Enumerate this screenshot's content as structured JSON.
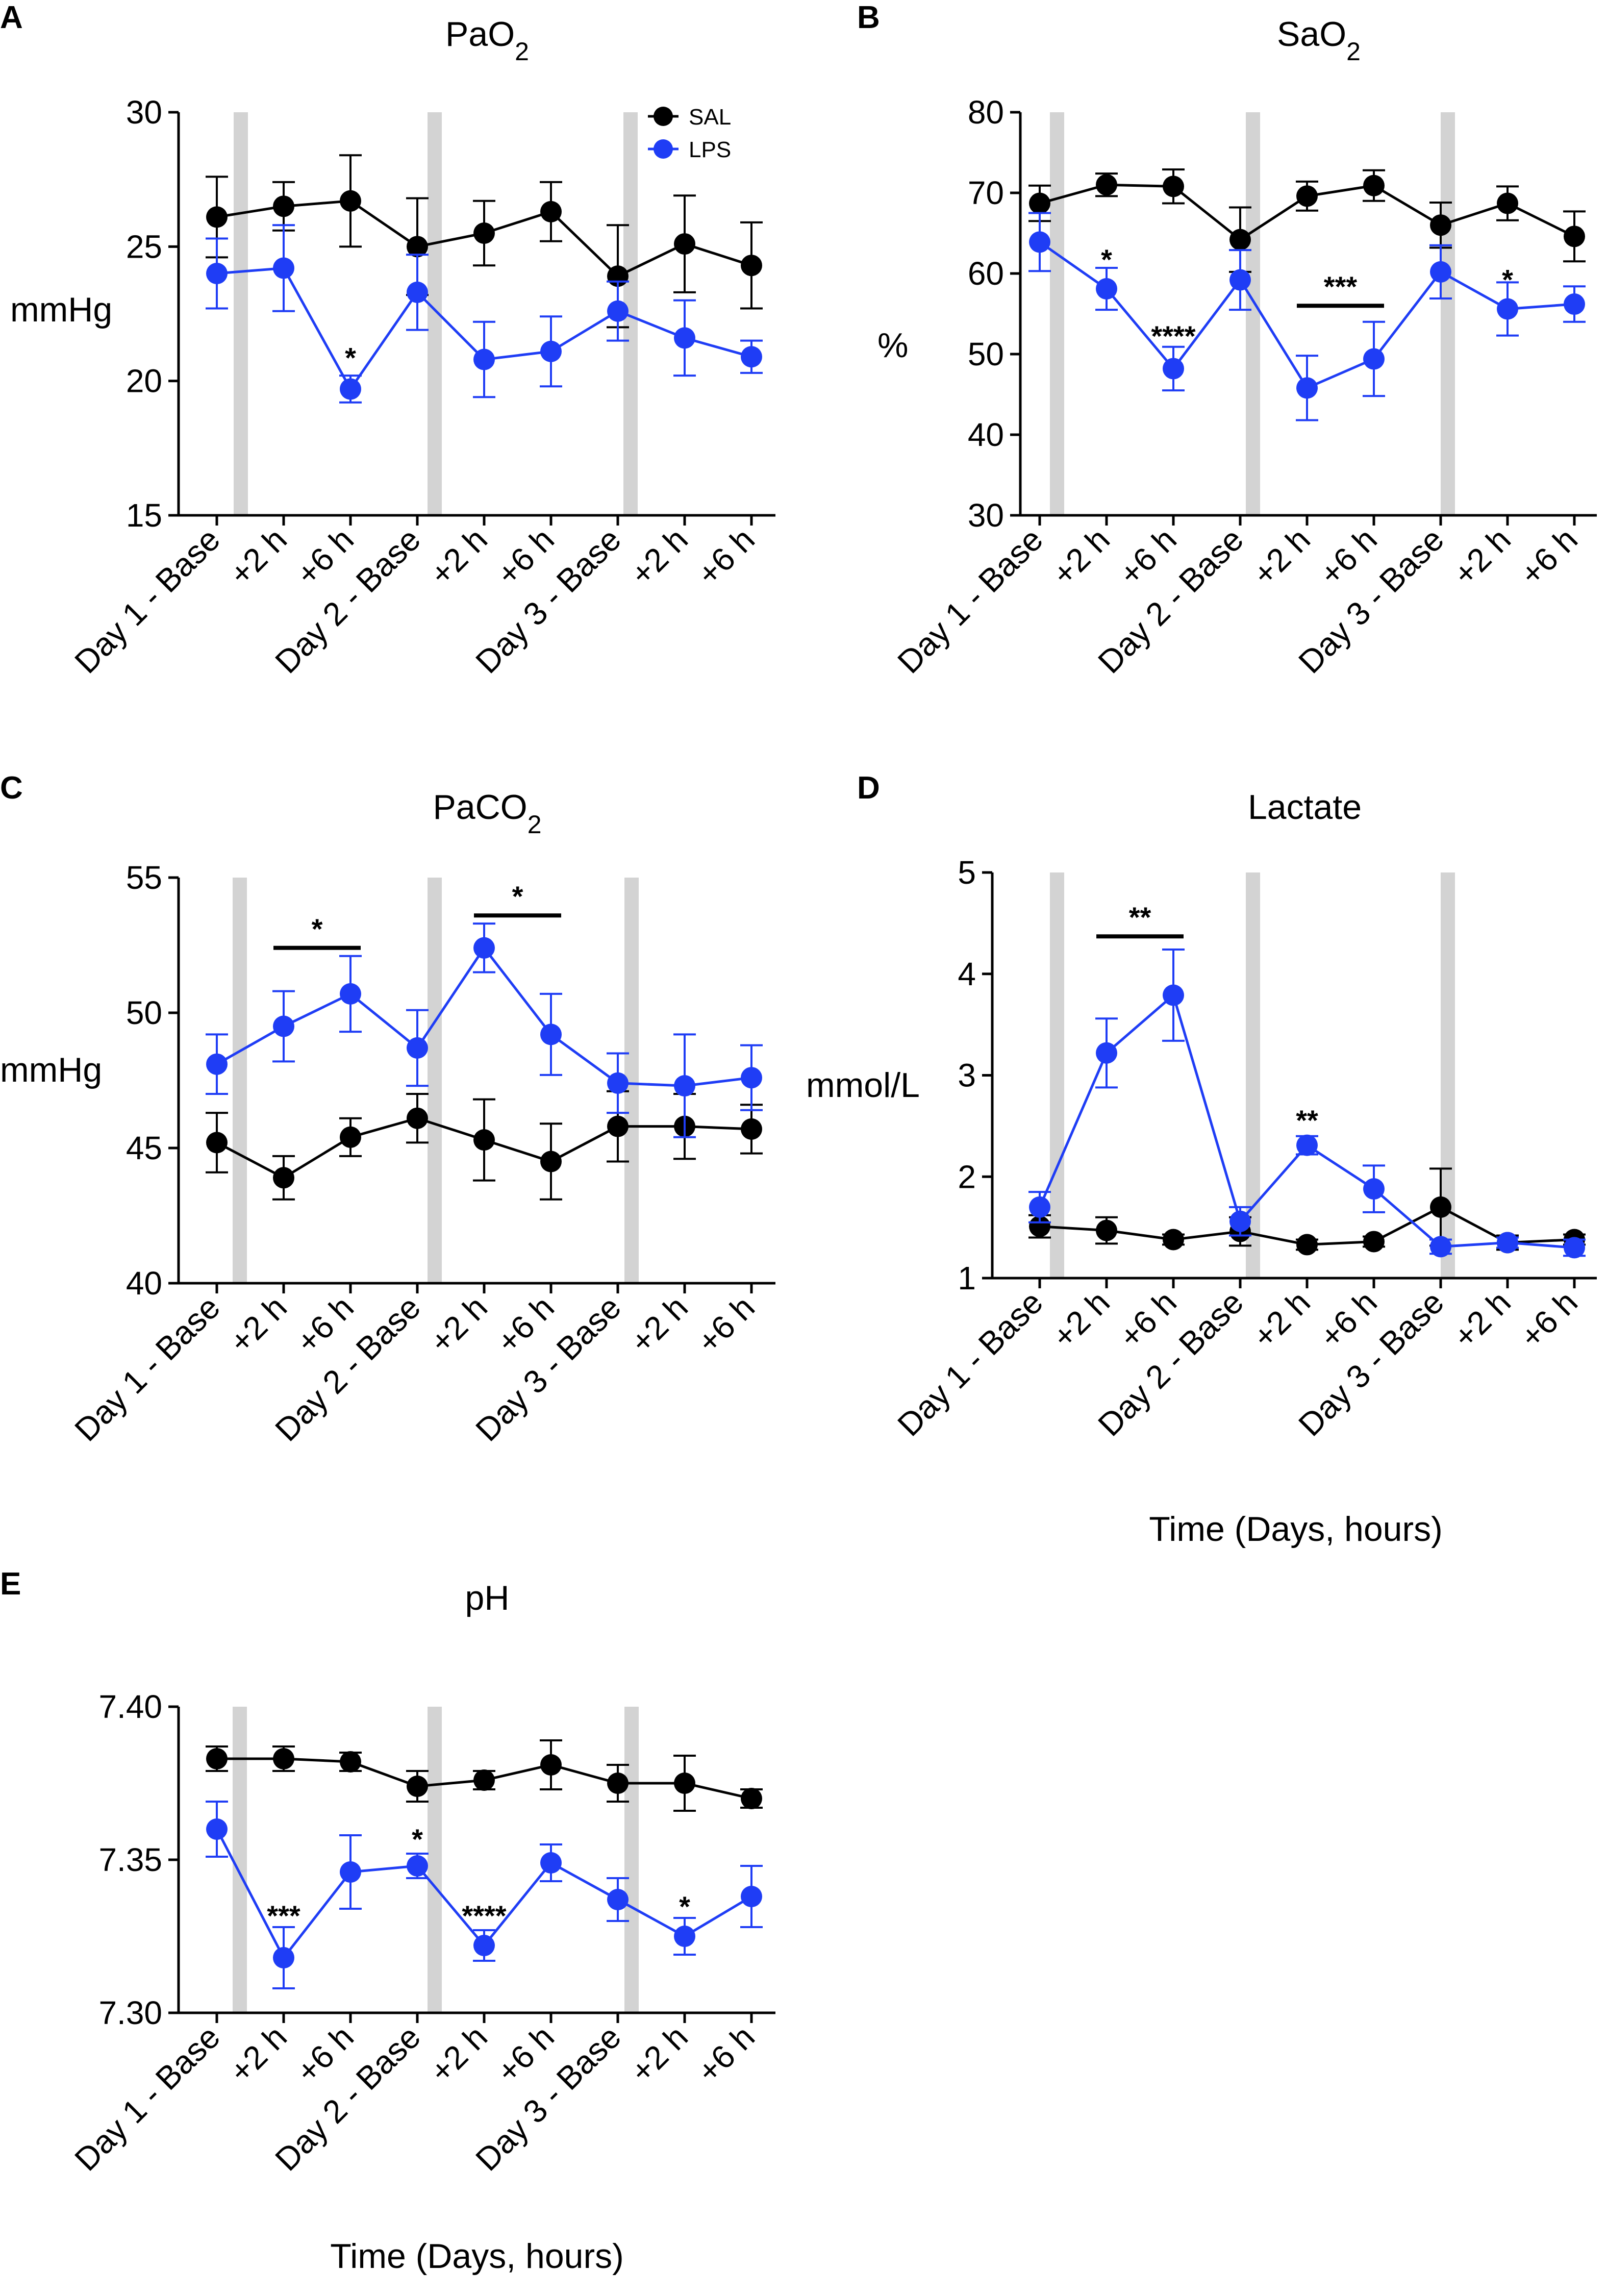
{
  "figure": {
    "colors": {
      "SAL": "#000000",
      "LPS": "#1f3df5",
      "band": "#d3d3d3"
    }
  },
  "chart_data": [
    {
      "panel": "A",
      "type": "line",
      "title": "PaO",
      "title_sub": "2",
      "ylabel": "mmHg",
      "xlabel": "",
      "ylim": [
        15,
        30
      ],
      "yticks": [
        "15",
        "20",
        "25",
        "30"
      ],
      "categories": [
        "Day 1 - Base",
        "+2 h",
        "+6 h",
        "Day 2 - Base",
        "+2 h",
        "+6 h",
        "Day 3 - Base",
        "+2 h",
        "+6 h"
      ],
      "legend": [
        "SAL",
        "LPS"
      ],
      "series": [
        {
          "name": "SAL",
          "values": [
            26.1,
            26.5,
            26.7,
            25.0,
            25.5,
            26.3,
            23.9,
            25.1,
            24.3
          ],
          "errors": [
            1.5,
            0.9,
            1.7,
            1.8,
            1.2,
            1.1,
            1.9,
            1.8,
            1.6
          ]
        },
        {
          "name": "LPS",
          "values": [
            24.0,
            24.2,
            19.7,
            23.3,
            20.8,
            21.1,
            22.6,
            21.6,
            20.9
          ],
          "errors": [
            1.3,
            1.6,
            0.5,
            1.4,
            1.4,
            1.3,
            1.1,
            1.4,
            0.6
          ]
        }
      ],
      "annotations": [
        {
          "text": "*",
          "x": 2,
          "y": 20.5
        }
      ],
      "bars": []
    },
    {
      "panel": "B",
      "type": "line",
      "title": "SaO",
      "title_sub": "2",
      "ylabel": "%",
      "xlabel": "",
      "ylim": [
        30,
        80
      ],
      "yticks": [
        "30",
        "40",
        "50",
        "60",
        "70",
        "80"
      ],
      "categories": [
        "Day 1 - Base",
        "+2 h",
        "+6 h",
        "Day 2 - Base",
        "+2 h",
        "+6 h",
        "Day 3 - Base",
        "+2 h",
        "+6 h"
      ],
      "legend": [],
      "series": [
        {
          "name": "SAL",
          "values": [
            68.7,
            71.0,
            70.8,
            64.2,
            69.6,
            70.9,
            66.0,
            68.7,
            64.6
          ],
          "errors": [
            2.2,
            1.4,
            2.1,
            4.0,
            1.8,
            1.9,
            2.8,
            2.1,
            3.1
          ]
        },
        {
          "name": "LPS",
          "values": [
            63.9,
            58.1,
            48.2,
            59.2,
            45.8,
            49.4,
            60.2,
            55.6,
            56.2
          ],
          "errors": [
            3.6,
            2.6,
            2.7,
            3.7,
            4.0,
            4.6,
            3.3,
            3.3,
            2.2
          ]
        }
      ],
      "annotations": [
        {
          "text": "*",
          "x": 1,
          "y": 60.5
        },
        {
          "text": "****",
          "x": 2,
          "y": 51
        },
        {
          "text": "*",
          "x": 7,
          "y": 58
        }
      ],
      "bars": [
        {
          "text": "***",
          "x1": 4,
          "x2": 5,
          "y": 56
        }
      ]
    },
    {
      "panel": "C",
      "type": "line",
      "title": "PaCO",
      "title_sub": "2",
      "ylabel": "mmHg",
      "xlabel": "",
      "ylim": [
        40,
        55
      ],
      "yticks": [
        "40",
        "45",
        "50",
        "55"
      ],
      "categories": [
        "Day 1 - Base",
        "+2 h",
        "+6 h",
        "Day 2 - Base",
        "+2 h",
        "+6 h",
        "Day 3 - Base",
        "+2 h",
        "+6 h"
      ],
      "legend": [],
      "series": [
        {
          "name": "SAL",
          "values": [
            45.2,
            43.9,
            45.4,
            46.1,
            45.3,
            44.5,
            45.8,
            45.8,
            45.7
          ],
          "errors": [
            1.1,
            0.8,
            0.7,
            0.9,
            1.5,
            1.4,
            1.3,
            1.2,
            0.9
          ]
        },
        {
          "name": "LPS",
          "values": [
            48.1,
            49.5,
            50.7,
            48.7,
            52.4,
            49.2,
            47.4,
            47.3,
            47.6
          ],
          "errors": [
            1.1,
            1.3,
            1.4,
            1.4,
            0.9,
            1.5,
            1.1,
            1.9,
            1.2
          ]
        }
      ],
      "annotations": [],
      "bars": [
        {
          "text": "*",
          "x1": 1,
          "x2": 2,
          "y": 52.4
        },
        {
          "text": "*",
          "x1": 4,
          "x2": 5,
          "y": 53.6
        }
      ]
    },
    {
      "panel": "D",
      "type": "line",
      "title": "Lactate",
      "title_sub": "",
      "ylabel": "mmol/L",
      "xlabel": "Time (Days, hours)",
      "ylim": [
        1,
        5
      ],
      "yticks": [
        "1",
        "2",
        "3",
        "4",
        "5"
      ],
      "categories": [
        "Day 1 - Base",
        "+2 h",
        "+6 h",
        "Day 2 - Base",
        "+2 h",
        "+6 h",
        "Day 3 - Base",
        "+2 h",
        "+6 h"
      ],
      "legend": [],
      "series": [
        {
          "name": "SAL",
          "values": [
            1.51,
            1.47,
            1.38,
            1.46,
            1.33,
            1.36,
            1.7,
            1.35,
            1.38
          ],
          "errors": [
            0.11,
            0.13,
            0.05,
            0.14,
            0.05,
            0.05,
            0.38,
            0.07,
            0.05
          ]
        },
        {
          "name": "LPS",
          "values": [
            1.7,
            3.22,
            3.79,
            1.56,
            2.31,
            1.88,
            1.31,
            1.35,
            1.3
          ],
          "errors": [
            0.15,
            0.34,
            0.45,
            0.14,
            0.09,
            0.23,
            0.07,
            0.05,
            0.08
          ]
        }
      ],
      "annotations": [
        {
          "text": "**",
          "x": 4,
          "y": 2.46
        }
      ],
      "bars": [
        {
          "text": "**",
          "x1": 1,
          "x2": 2,
          "y": 4.37
        }
      ]
    },
    {
      "panel": "E",
      "type": "line",
      "title": "pH",
      "title_sub": "",
      "ylabel": "",
      "xlabel": "Time (Days, hours)",
      "ylim": [
        7.3,
        7.4
      ],
      "yticks": [
        "7.30",
        "7.35",
        "7.40"
      ],
      "categories": [
        "Day 1 - Base",
        "+2 h",
        "+6 h",
        "Day 2 - Base",
        "+2 h",
        "+6 h",
        "Day 3 - Base",
        "+2 h",
        "+6 h"
      ],
      "legend": [],
      "series": [
        {
          "name": "SAL",
          "values": [
            7.383,
            7.383,
            7.382,
            7.374,
            7.376,
            7.381,
            7.375,
            7.375,
            7.37
          ],
          "errors": [
            0.004,
            0.004,
            0.003,
            0.005,
            0.003,
            0.008,
            0.006,
            0.009,
            0.003
          ]
        },
        {
          "name": "LPS",
          "values": [
            7.36,
            7.318,
            7.346,
            7.348,
            7.322,
            7.349,
            7.337,
            7.325,
            7.338
          ],
          "errors": [
            0.009,
            0.01,
            0.012,
            0.004,
            0.005,
            0.006,
            0.007,
            0.006,
            0.01
          ]
        }
      ],
      "annotations": [
        {
          "text": "***",
          "x": 1,
          "y": 7.3285
        },
        {
          "text": "*",
          "x": 3,
          "y": 7.3535
        },
        {
          "text": "****",
          "x": 4,
          "y": 7.3285
        },
        {
          "text": "*",
          "x": 7,
          "y": 7.3315
        }
      ],
      "bars": []
    }
  ]
}
